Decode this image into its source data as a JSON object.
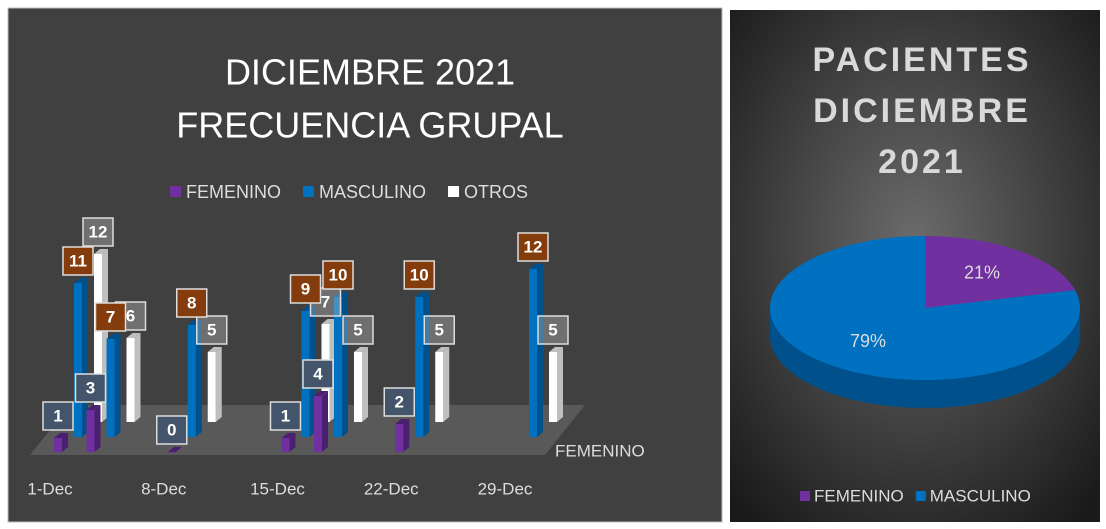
{
  "chart_data": [
    {
      "type": "bar3d",
      "title": [
        "DICIEMBRE 2021",
        "FRECUENCIA GRUPAL"
      ],
      "series_axis_label": "FEMENINO",
      "x": [
        1,
        3,
        8,
        15,
        17,
        22,
        29
      ],
      "xlim": [
        1,
        29
      ],
      "xticks": [
        {
          "value": 1,
          "label": "1-Dec"
        },
        {
          "value": 8,
          "label": "8-Dec"
        },
        {
          "value": 15,
          "label": "15-Dec"
        },
        {
          "value": 22,
          "label": "22-Dec"
        },
        {
          "value": 29,
          "label": "29-Dec"
        }
      ],
      "series": [
        {
          "name": "FEMENINO",
          "color": "#7030a0",
          "values": [
            1,
            3,
            0,
            1,
            4,
            2,
            null
          ]
        },
        {
          "name": "MASCULINO",
          "color": "#0070c0",
          "values": [
            11,
            7,
            8,
            9,
            10,
            10,
            12
          ]
        },
        {
          "name": "OTROS",
          "color": "#ffffff",
          "values": [
            12,
            6,
            5,
            7,
            5,
            5,
            5
          ]
        }
      ]
    },
    {
      "type": "pie",
      "title": [
        "PACIENTES",
        "DICIEMBRE",
        "2021"
      ],
      "categories": [
        "FEMENINO",
        "MASCULINO"
      ],
      "values": [
        21,
        79
      ],
      "value_labels": [
        "21%",
        "79%"
      ],
      "colors": [
        "#7030a0",
        "#0070c0"
      ]
    }
  ]
}
